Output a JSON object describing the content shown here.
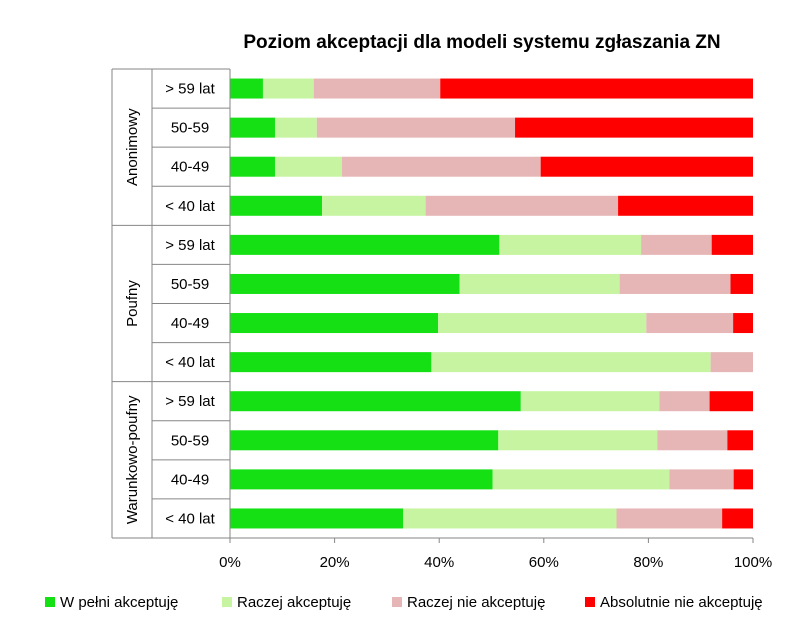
{
  "chart_data": {
    "type": "bar",
    "orientation": "horizontal",
    "stacked": "percent",
    "title": "Poziom akceptacji dla modeli systemu zgłaszania ZN",
    "xlabel": "",
    "ylabel": "",
    "xlim": [
      0,
      100
    ],
    "x_ticks": [
      "0%",
      "20%",
      "40%",
      "60%",
      "80%",
      "100%"
    ],
    "grid": false,
    "legend_position": "bottom",
    "groups": [
      {
        "name": "Anonimowy",
        "categories": [
          "> 59 lat",
          "50-59",
          "40-49",
          "< 40 lat"
        ]
      },
      {
        "name": "Poufny",
        "categories": [
          "> 59 lat",
          "50-59",
          "40-49",
          "< 40 lat"
        ]
      },
      {
        "name": "Warunkowo-poufny",
        "categories": [
          "> 59 lat",
          "50-59",
          "40-49",
          "< 40 lat"
        ]
      }
    ],
    "series": [
      {
        "name": "W pełni akceptuję",
        "color": "#14e014",
        "values": [
          6.3,
          8.6,
          8.6,
          17.6,
          51.5,
          43.9,
          39.8,
          38.5,
          55.6,
          51.3,
          50.2,
          33.1
        ]
      },
      {
        "name": "Raczej akceptuję",
        "color": "#c6f4a0",
        "values": [
          9.7,
          8.0,
          12.8,
          19.8,
          27.1,
          30.6,
          39.8,
          53.4,
          26.5,
          30.4,
          33.8,
          40.8
        ]
      },
      {
        "name": "Raczej nie akceptuję",
        "color": "#e6b6b6",
        "values": [
          24.2,
          37.9,
          38.0,
          36.8,
          13.5,
          21.2,
          16.6,
          8.1,
          9.6,
          13.4,
          12.3,
          20.2
        ]
      },
      {
        "name": "Absolutnie nie akceptuję",
        "color": "#ff0000",
        "values": [
          59.8,
          45.5,
          40.6,
          25.8,
          7.9,
          4.3,
          3.8,
          0.0,
          8.3,
          4.9,
          3.7,
          5.9
        ]
      }
    ]
  }
}
